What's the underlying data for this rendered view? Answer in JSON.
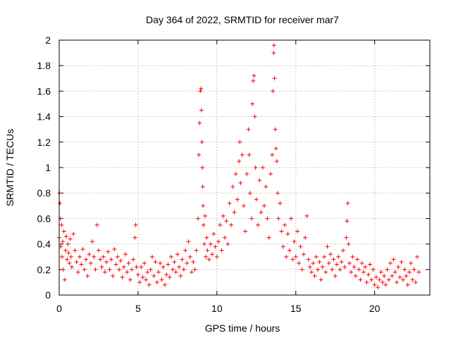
{
  "chart_data": {
    "type": "scatter",
    "title": "Day 364 of 2022, SRMTID for receiver mar7",
    "xlabel": "GPS time / hours",
    "ylabel": "SRMTID / TECUs",
    "xlim": [
      0,
      23.5
    ],
    "ylim": [
      0,
      2
    ],
    "xticks": [
      0,
      5,
      10,
      15,
      20
    ],
    "xtick_labels": [
      "0",
      "5",
      "10",
      "15",
      "20"
    ],
    "yticks": [
      0,
      0.2,
      0.4,
      0.6,
      0.8,
      1,
      1.2,
      1.4,
      1.6,
      1.8,
      2
    ],
    "ytick_labels": [
      "0",
      "0.2",
      "0.4",
      "0.6",
      "0.8",
      "1",
      "1.2",
      "1.4",
      "1.6",
      "1.8",
      "2"
    ],
    "grid": true,
    "marker": "+",
    "color": "#ff0000",
    "series": [
      {
        "name": "mar7",
        "points": [
          [
            0.0,
            0.45
          ],
          [
            0.02,
            0.8
          ],
          [
            0.05,
            0.72
          ],
          [
            0.08,
            0.6
          ],
          [
            0.1,
            0.38
          ],
          [
            0.15,
            0.55
          ],
          [
            0.18,
            0.3
          ],
          [
            0.22,
            0.42
          ],
          [
            0.25,
            0.2
          ],
          [
            0.3,
            0.5
          ],
          [
            0.35,
            0.12
          ],
          [
            0.4,
            0.35
          ],
          [
            0.45,
            0.46
          ],
          [
            0.5,
            0.28
          ],
          [
            0.55,
            0.4
          ],
          [
            0.6,
            0.33
          ],
          [
            0.65,
            0.25
          ],
          [
            0.7,
            0.44
          ],
          [
            0.75,
            0.3
          ],
          [
            0.8,
            0.22
          ],
          [
            0.9,
            0.48
          ],
          [
            1.0,
            0.35
          ],
          [
            1.1,
            0.26
          ],
          [
            1.2,
            0.18
          ],
          [
            1.3,
            0.3
          ],
          [
            1.4,
            0.24
          ],
          [
            1.5,
            0.36
          ],
          [
            1.6,
            0.2
          ],
          [
            1.7,
            0.28
          ],
          [
            1.8,
            0.15
          ],
          [
            1.9,
            0.32
          ],
          [
            2.0,
            0.25
          ],
          [
            2.1,
            0.42
          ],
          [
            2.2,
            0.3
          ],
          [
            2.3,
            0.2
          ],
          [
            2.4,
            0.55
          ],
          [
            2.5,
            0.35
          ],
          [
            2.6,
            0.28
          ],
          [
            2.7,
            0.22
          ],
          [
            2.8,
            0.3
          ],
          [
            2.9,
            0.18
          ],
          [
            3.0,
            0.26
          ],
          [
            3.1,
            0.34
          ],
          [
            3.2,
            0.2
          ],
          [
            3.3,
            0.28
          ],
          [
            3.4,
            0.15
          ],
          [
            3.5,
            0.36
          ],
          [
            3.6,
            0.24
          ],
          [
            3.7,
            0.3
          ],
          [
            3.8,
            0.2
          ],
          [
            3.9,
            0.27
          ],
          [
            4.0,
            0.14
          ],
          [
            4.1,
            0.22
          ],
          [
            4.2,
            0.32
          ],
          [
            4.3,
            0.18
          ],
          [
            4.4,
            0.25
          ],
          [
            4.5,
            0.12
          ],
          [
            4.6,
            0.2
          ],
          [
            4.7,
            0.28
          ],
          [
            4.8,
            0.45
          ],
          [
            4.85,
            0.55
          ],
          [
            4.9,
            0.22
          ],
          [
            5.0,
            0.16
          ],
          [
            5.1,
            0.1
          ],
          [
            5.2,
            0.22
          ],
          [
            5.3,
            0.14
          ],
          [
            5.4,
            0.25
          ],
          [
            5.5,
            0.12
          ],
          [
            5.6,
            0.18
          ],
          [
            5.7,
            0.08
          ],
          [
            5.8,
            0.2
          ],
          [
            5.9,
            0.3
          ],
          [
            6.0,
            0.15
          ],
          [
            6.1,
            0.26
          ],
          [
            6.2,
            0.1
          ],
          [
            6.3,
            0.18
          ],
          [
            6.4,
            0.25
          ],
          [
            6.5,
            0.12
          ],
          [
            6.6,
            0.22
          ],
          [
            6.7,
            0.08
          ],
          [
            6.8,
            0.16
          ],
          [
            6.9,
            0.24
          ],
          [
            7.0,
            0.14
          ],
          [
            7.1,
            0.3
          ],
          [
            7.2,
            0.2
          ],
          [
            7.3,
            0.26
          ],
          [
            7.4,
            0.18
          ],
          [
            7.5,
            0.32
          ],
          [
            7.6,
            0.22
          ],
          [
            7.7,
            0.15
          ],
          [
            7.8,
            0.28
          ],
          [
            7.9,
            0.2
          ],
          [
            8.0,
            0.35
          ],
          [
            8.1,
            0.25
          ],
          [
            8.2,
            0.42
          ],
          [
            8.3,
            0.3
          ],
          [
            8.4,
            0.18
          ],
          [
            8.5,
            0.26
          ],
          [
            8.6,
            0.2
          ],
          [
            8.7,
            0.35
          ],
          [
            8.8,
            0.6
          ],
          [
            8.85,
            1.1
          ],
          [
            8.9,
            1.35
          ],
          [
            8.95,
            1.6
          ],
          [
            9.0,
            1.62
          ],
          [
            9.02,
            1.45
          ],
          [
            9.05,
            1.2
          ],
          [
            9.08,
            1.0
          ],
          [
            9.1,
            0.85
          ],
          [
            9.12,
            0.7
          ],
          [
            9.15,
            0.55
          ],
          [
            9.2,
            0.4
          ],
          [
            9.25,
            0.62
          ],
          [
            9.3,
            0.3
          ],
          [
            9.35,
            0.45
          ],
          [
            9.4,
            0.35
          ],
          [
            9.5,
            0.28
          ],
          [
            9.6,
            0.4
          ],
          [
            9.7,
            0.32
          ],
          [
            9.8,
            0.48
          ],
          [
            9.9,
            0.38
          ],
          [
            10.0,
            0.3
          ],
          [
            10.1,
            0.42
          ],
          [
            10.2,
            0.55
          ],
          [
            10.3,
            0.35
          ],
          [
            10.4,
            0.62
          ],
          [
            10.5,
            0.45
          ],
          [
            10.6,
            0.58
          ],
          [
            10.7,
            0.4
          ],
          [
            10.8,
            0.72
          ],
          [
            10.9,
            0.55
          ],
          [
            11.0,
            0.85
          ],
          [
            11.1,
            0.65
          ],
          [
            11.2,
            0.95
          ],
          [
            11.3,
            0.75
          ],
          [
            11.4,
            1.05
          ],
          [
            11.45,
            1.2
          ],
          [
            11.5,
            0.88
          ],
          [
            11.6,
            1.1
          ],
          [
            11.7,
            0.7
          ],
          [
            11.8,
            0.5
          ],
          [
            11.9,
            0.95
          ],
          [
            12.0,
            1.3
          ],
          [
            12.05,
            1.1
          ],
          [
            12.1,
            0.8
          ],
          [
            12.2,
            0.6
          ],
          [
            12.25,
            1.5
          ],
          [
            12.3,
            1.68
          ],
          [
            12.35,
            1.72
          ],
          [
            12.4,
            1.4
          ],
          [
            12.45,
            1.0
          ],
          [
            12.5,
            0.75
          ],
          [
            12.6,
            0.55
          ],
          [
            12.7,
            0.9
          ],
          [
            12.8,
            0.65
          ],
          [
            12.9,
            1.0
          ],
          [
            13.0,
            0.7
          ],
          [
            13.1,
            0.85
          ],
          [
            13.2,
            0.6
          ],
          [
            13.3,
            0.45
          ],
          [
            13.4,
            0.95
          ],
          [
            13.5,
            1.1
          ],
          [
            13.55,
            1.6
          ],
          [
            13.6,
            1.9
          ],
          [
            13.62,
            1.96
          ],
          [
            13.65,
            1.7
          ],
          [
            13.7,
            1.3
          ],
          [
            13.75,
            1.15
          ],
          [
            13.8,
            1.05
          ],
          [
            13.85,
            0.8
          ],
          [
            13.9,
            0.6
          ],
          [
            14.0,
            0.72
          ],
          [
            14.1,
            0.5
          ],
          [
            14.2,
            0.38
          ],
          [
            14.3,
            0.55
          ],
          [
            14.4,
            0.3
          ],
          [
            14.5,
            0.48
          ],
          [
            14.6,
            0.35
          ],
          [
            14.7,
            0.6
          ],
          [
            14.8,
            0.28
          ],
          [
            14.9,
            0.42
          ],
          [
            15.0,
            0.3
          ],
          [
            15.1,
            0.5
          ],
          [
            15.2,
            0.25
          ],
          [
            15.3,
            0.38
          ],
          [
            15.4,
            0.2
          ],
          [
            15.5,
            0.32
          ],
          [
            15.6,
            0.45
          ],
          [
            15.7,
            0.62
          ],
          [
            15.8,
            0.28
          ],
          [
            15.9,
            0.22
          ],
          [
            16.0,
            0.18
          ],
          [
            16.1,
            0.25
          ],
          [
            16.2,
            0.15
          ],
          [
            16.3,
            0.3
          ],
          [
            16.4,
            0.2
          ],
          [
            16.5,
            0.26
          ],
          [
            16.6,
            0.12
          ],
          [
            16.7,
            0.22
          ],
          [
            16.8,
            0.3
          ],
          [
            16.9,
            0.18
          ],
          [
            17.0,
            0.38
          ],
          [
            17.1,
            0.25
          ],
          [
            17.2,
            0.32
          ],
          [
            17.3,
            0.2
          ],
          [
            17.4,
            0.28
          ],
          [
            17.5,
            0.15
          ],
          [
            17.6,
            0.24
          ],
          [
            17.7,
            0.3
          ],
          [
            17.8,
            0.2
          ],
          [
            17.9,
            0.26
          ],
          [
            18.0,
            0.35
          ],
          [
            18.1,
            0.22
          ],
          [
            18.2,
            0.45
          ],
          [
            18.25,
            0.58
          ],
          [
            18.3,
            0.72
          ],
          [
            18.35,
            0.4
          ],
          [
            18.4,
            0.25
          ],
          [
            18.5,
            0.18
          ],
          [
            18.6,
            0.3
          ],
          [
            18.7,
            0.22
          ],
          [
            18.8,
            0.15
          ],
          [
            18.9,
            0.28
          ],
          [
            19.0,
            0.2
          ],
          [
            19.1,
            0.12
          ],
          [
            19.2,
            0.25
          ],
          [
            19.3,
            0.18
          ],
          [
            19.4,
            0.22
          ],
          [
            19.5,
            0.1
          ],
          [
            19.6,
            0.16
          ],
          [
            19.7,
            0.24
          ],
          [
            19.8,
            0.12
          ],
          [
            19.9,
            0.2
          ],
          [
            20.0,
            0.08
          ],
          [
            20.1,
            0.14
          ],
          [
            20.2,
            0.06
          ],
          [
            20.3,
            0.12
          ],
          [
            20.4,
            0.18
          ],
          [
            20.5,
            0.1
          ],
          [
            20.6,
            0.15
          ],
          [
            20.7,
            0.08
          ],
          [
            20.8,
            0.2
          ],
          [
            20.9,
            0.12
          ],
          [
            21.0,
            0.25
          ],
          [
            21.1,
            0.15
          ],
          [
            21.2,
            0.28
          ],
          [
            21.3,
            0.18
          ],
          [
            21.4,
            0.1
          ],
          [
            21.5,
            0.22
          ],
          [
            21.6,
            0.14
          ],
          [
            21.7,
            0.26
          ],
          [
            21.8,
            0.12
          ],
          [
            21.9,
            0.2
          ],
          [
            22.0,
            0.15
          ],
          [
            22.1,
            0.08
          ],
          [
            22.2,
            0.18
          ],
          [
            22.3,
            0.25
          ],
          [
            22.4,
            0.12
          ],
          [
            22.5,
            0.2
          ],
          [
            22.6,
            0.1
          ],
          [
            22.7,
            0.3
          ],
          [
            22.8,
            0.18
          ]
        ]
      }
    ]
  }
}
